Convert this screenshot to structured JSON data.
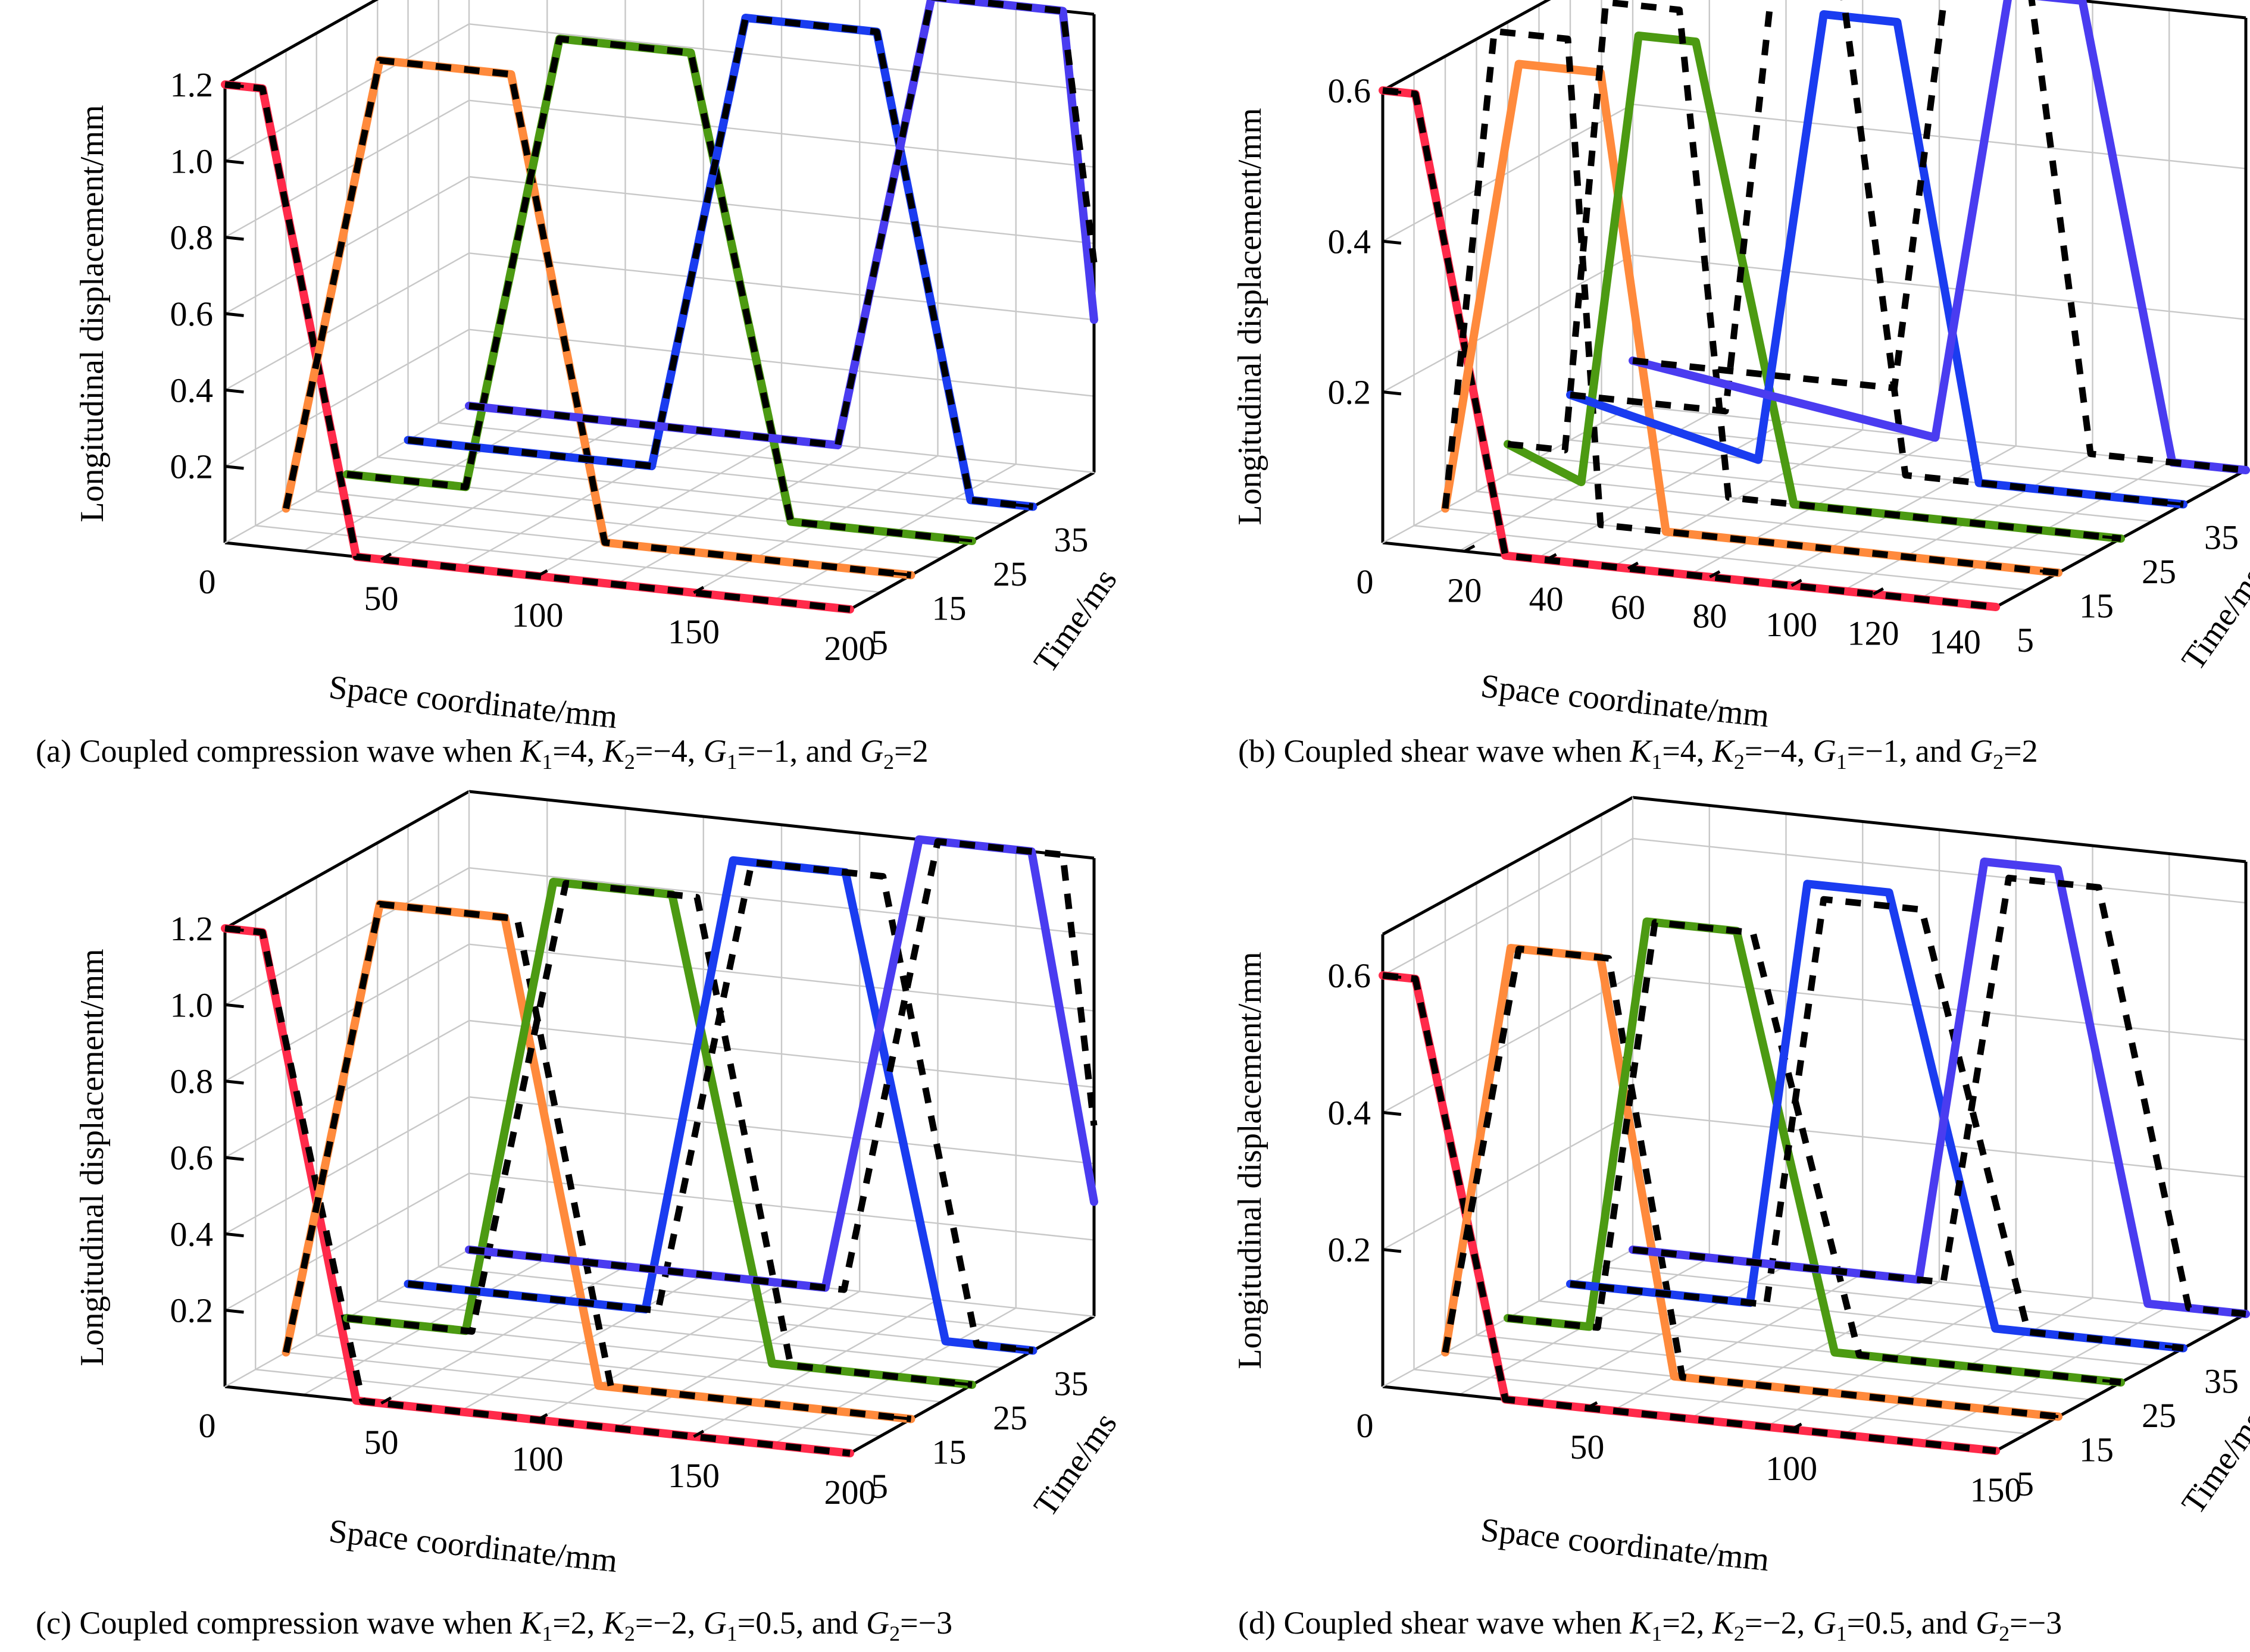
{
  "figure": {
    "panels": [
      {
        "id": "a",
        "caption": {
          "prefix": "(a) Coupled compression wave when ",
          "terms": [
            {
              "sym": "K",
              "sub": "1",
              "val": "=4, "
            },
            {
              "sym": "K",
              "sub": "2",
              "val": "=−4, "
            },
            {
              "sym": "G",
              "sub": "1",
              "val": "=−1, and "
            },
            {
              "sym": "G",
              "sub": "2",
              "val": "=2"
            }
          ]
        }
      },
      {
        "id": "b",
        "caption": {
          "prefix": "(b) Coupled shear wave when ",
          "terms": [
            {
              "sym": "K",
              "sub": "1",
              "val": "=4, "
            },
            {
              "sym": "K",
              "sub": "2",
              "val": "=−4, "
            },
            {
              "sym": "G",
              "sub": "1",
              "val": "=−1, and "
            },
            {
              "sym": "G",
              "sub": "2",
              "val": "=2"
            }
          ]
        }
      },
      {
        "id": "c",
        "caption": {
          "prefix": "(c) Coupled compression wave when ",
          "terms": [
            {
              "sym": "K",
              "sub": "1",
              "val": "=2, "
            },
            {
              "sym": "K",
              "sub": "2",
              "val": "=−2, "
            },
            {
              "sym": "G",
              "sub": "1",
              "val": "=0.5, and "
            },
            {
              "sym": "G",
              "sub": "2",
              "val": "=−3"
            }
          ]
        }
      },
      {
        "id": "d",
        "caption": {
          "prefix": "(d) Coupled shear wave when ",
          "terms": [
            {
              "sym": "K",
              "sub": "1",
              "val": "=2, "
            },
            {
              "sym": "K",
              "sub": "2",
              "val": "=−2, "
            },
            {
              "sym": "G",
              "sub": "1",
              "val": "=0.5, and "
            },
            {
              "sym": "G",
              "sub": "2",
              "val": "=−3"
            }
          ]
        }
      }
    ]
  },
  "colors": {
    "t5": "#ff2a4a",
    "t15": "#ff8a3c",
    "t25": "#4c9a12",
    "t35": "#1a3cf0",
    "t45": "#4a3cf0",
    "analytical": "#000000",
    "grid": "#c8c8c8"
  },
  "chart_data": [
    {
      "type": "line",
      "title": "(a) Coupled compression wave when K1=4, K2=-4, G1=-1, and G2=2",
      "xlabel": "Space coordinate/mm",
      "ylabel": "Time/ms",
      "zlabel": "Longitudinal displacement/mm",
      "xlim": [
        0,
        200
      ],
      "ylim": [
        5,
        45
      ],
      "zlim": [
        0,
        1.2
      ],
      "xticks": [
        "0",
        "50",
        "100",
        "150",
        "200"
      ],
      "yticks": [
        "5",
        "15",
        "25",
        "35"
      ],
      "zticks": [
        "0.2",
        "0.4",
        "0.6",
        "0.8",
        "1.0",
        "1.2"
      ],
      "grid": true,
      "series": [
        {
          "name": "t=5 ms numerical",
          "time": 5,
          "style": "solid",
          "color_key": "t5",
          "x": [
            0,
            12,
            42,
            200
          ],
          "z": [
            1.2,
            1.2,
            0.0,
            0.0
          ]
        },
        {
          "name": "t=5 ms analytical",
          "time": 5,
          "style": "dashed",
          "x": [
            0,
            12,
            42,
            200
          ],
          "z": [
            1.2,
            1.2,
            0.0,
            0.0
          ]
        },
        {
          "name": "t=15 ms numerical",
          "time": 15,
          "style": "solid",
          "color_key": "t15",
          "x": [
            0,
            30,
            72,
            102,
            200
          ],
          "z": [
            0.0,
            1.2,
            1.2,
            0.0,
            0.0
          ]
        },
        {
          "name": "t=15 ms analytical",
          "time": 15,
          "style": "dashed",
          "x": [
            0,
            30,
            72,
            102,
            200
          ],
          "z": [
            0.0,
            1.2,
            1.2,
            0.0,
            0.0
          ]
        },
        {
          "name": "t=25 ms numerical",
          "time": 25,
          "style": "solid",
          "color_key": "t25",
          "x": [
            0,
            38,
            68,
            110,
            142,
            200
          ],
          "z": [
            0.0,
            0.0,
            1.2,
            1.2,
            0.0,
            0.0
          ]
        },
        {
          "name": "t=25 ms analytical",
          "time": 25,
          "style": "dashed",
          "x": [
            0,
            38,
            68,
            110,
            142,
            200
          ],
          "z": [
            0.0,
            0.0,
            1.2,
            1.2,
            0.0,
            0.0
          ]
        },
        {
          "name": "t=35 ms numerical",
          "time": 35,
          "style": "solid",
          "color_key": "t35",
          "x": [
            0,
            78,
            108,
            150,
            180,
            200
          ],
          "z": [
            0.0,
            0.0,
            1.2,
            1.2,
            0.0,
            0.0
          ]
        },
        {
          "name": "t=35 ms analytical",
          "time": 35,
          "style": "dashed",
          "x": [
            0,
            78,
            108,
            150,
            180,
            200
          ],
          "z": [
            0.0,
            0.0,
            1.2,
            1.2,
            0.0,
            0.0
          ]
        },
        {
          "name": "t=45 ms numerical",
          "time": 45,
          "style": "solid",
          "color_key": "t45",
          "x": [
            0,
            118,
            148,
            190,
            200
          ],
          "z": [
            0.0,
            0.0,
            1.2,
            1.2,
            0.4
          ]
        },
        {
          "name": "t=45 ms analytical",
          "time": 45,
          "style": "dashed",
          "x": [
            0,
            118,
            148,
            190,
            200
          ],
          "z": [
            0.0,
            0.0,
            1.2,
            1.2,
            0.55
          ]
        }
      ]
    },
    {
      "type": "line",
      "title": "(b) Coupled shear wave when K1=4, K2=-4, G1=-1, and G2=2",
      "xlabel": "Space coordinate/mm",
      "ylabel": "Time/ms",
      "zlabel": "Longitudinal displacement/mm",
      "xlim": [
        0,
        150
      ],
      "ylim": [
        5,
        45
      ],
      "zlim": [
        0,
        0.6
      ],
      "xticks": [
        "0",
        "20",
        "40",
        "60",
        "80",
        "100",
        "120",
        "140"
      ],
      "yticks": [
        "5",
        "15",
        "25",
        "35"
      ],
      "zticks": [
        "0.2",
        "0.4",
        "0.6"
      ],
      "grid": true,
      "series": [
        {
          "name": "t=5 ms numerical",
          "time": 5,
          "style": "solid",
          "color_key": "t5",
          "x": [
            0,
            8,
            30,
            150
          ],
          "z": [
            0.6,
            0.6,
            0.0,
            0.0
          ]
        },
        {
          "name": "t=5 ms analytical",
          "time": 5,
          "style": "dashed",
          "x": [
            0,
            8,
            30,
            150
          ],
          "z": [
            0.6,
            0.6,
            0.0,
            0.0
          ]
        },
        {
          "name": "t=15 ms numerical",
          "time": 15,
          "style": "solid",
          "color_key": "t15",
          "x": [
            0,
            18,
            38,
            54,
            150
          ],
          "z": [
            0.0,
            0.6,
            0.6,
            0.0,
            0.0
          ]
        },
        {
          "name": "t=15 ms analytical",
          "time": 15,
          "style": "dashed",
          "x": [
            0,
            12,
            30,
            38,
            150
          ],
          "z": [
            0.0,
            0.64,
            0.64,
            0.0,
            0.0
          ]
        },
        {
          "name": "t=25 ms numerical",
          "time": 25,
          "style": "solid",
          "color_key": "t25",
          "x": [
            0,
            18,
            32,
            46,
            70,
            150
          ],
          "z": [
            0.04,
            0.0,
            0.6,
            0.6,
            0.0,
            0.0
          ]
        },
        {
          "name": "t=25 ms analytical",
          "time": 25,
          "style": "dashed",
          "x": [
            0,
            14,
            24,
            42,
            54,
            150
          ],
          "z": [
            0.04,
            0.04,
            0.64,
            0.64,
            0.0,
            0.0
          ]
        },
        {
          "name": "t=35 ms numerical",
          "time": 35,
          "style": "solid",
          "color_key": "t35",
          "x": [
            0,
            46,
            62,
            80,
            100,
            150
          ],
          "z": [
            0.06,
            0.0,
            0.6,
            0.6,
            0.0,
            0.0
          ]
        },
        {
          "name": "t=35 ms analytical",
          "time": 35,
          "style": "dashed",
          "x": [
            0,
            38,
            50,
            66,
            82,
            150
          ],
          "z": [
            0.06,
            0.06,
            0.66,
            0.66,
            0.0,
            0.0
          ]
        },
        {
          "name": "t=45 ms numerical",
          "time": 45,
          "style": "solid",
          "color_key": "t45",
          "x": [
            0,
            74,
            92,
            110,
            132,
            150
          ],
          "z": [
            0.06,
            0.0,
            0.6,
            0.6,
            0.0,
            0.0
          ]
        },
        {
          "name": "t=45 ms analytical",
          "time": 45,
          "style": "dashed",
          "x": [
            0,
            64,
            78,
            96,
            112,
            150
          ],
          "z": [
            0.06,
            0.06,
            0.66,
            0.66,
            0.0,
            0.0
          ]
        }
      ]
    },
    {
      "type": "line",
      "title": "(c) Coupled compression wave when K1=2, K2=-2, G1=0.5, and G2=-3",
      "xlabel": "Space coordinate/mm",
      "ylabel": "Time/ms",
      "zlabel": "Longitudinal displacement/mm",
      "xlim": [
        0,
        200
      ],
      "ylim": [
        5,
        45
      ],
      "zlim": [
        0,
        1.2
      ],
      "xticks": [
        "0",
        "50",
        "100",
        "150",
        "200"
      ],
      "yticks": [
        "5",
        "15",
        "25",
        "35"
      ],
      "zticks": [
        "0.2",
        "0.4",
        "0.6",
        "0.8",
        "1.0",
        "1.2"
      ],
      "grid": true,
      "series": [
        {
          "name": "t=5 ms numerical",
          "time": 5,
          "style": "solid",
          "color_key": "t5",
          "x": [
            0,
            12,
            42,
            200
          ],
          "z": [
            1.2,
            1.2,
            0.0,
            0.0
          ]
        },
        {
          "name": "t=5 ms analytical",
          "time": 5,
          "style": "dashed",
          "x": [
            0,
            12,
            44,
            200
          ],
          "z": [
            1.2,
            1.2,
            0.0,
            0.0
          ]
        },
        {
          "name": "t=15 ms numerical",
          "time": 15,
          "style": "solid",
          "color_key": "t15",
          "x": [
            0,
            30,
            70,
            100,
            200
          ],
          "z": [
            0.0,
            1.2,
            1.2,
            0.0,
            0.0
          ]
        },
        {
          "name": "t=15 ms analytical",
          "time": 15,
          "style": "dashed",
          "x": [
            0,
            30,
            74,
            104,
            200
          ],
          "z": [
            0.0,
            1.2,
            1.2,
            0.0,
            0.0
          ]
        },
        {
          "name": "t=25 ms numerical",
          "time": 25,
          "style": "solid",
          "color_key": "t25",
          "x": [
            0,
            38,
            66,
            104,
            136,
            200
          ],
          "z": [
            0.0,
            0.0,
            1.2,
            1.2,
            0.0,
            0.0
          ]
        },
        {
          "name": "t=25 ms analytical",
          "time": 25,
          "style": "dashed",
          "x": [
            0,
            40,
            70,
            112,
            142,
            200
          ],
          "z": [
            0.0,
            0.0,
            1.2,
            1.2,
            0.0,
            0.0
          ]
        },
        {
          "name": "t=35 ms numerical",
          "time": 35,
          "style": "solid",
          "color_key": "t35",
          "x": [
            0,
            76,
            104,
            140,
            172,
            200
          ],
          "z": [
            0.0,
            0.0,
            1.2,
            1.2,
            0.0,
            0.0
          ]
        },
        {
          "name": "t=35 ms analytical",
          "time": 35,
          "style": "dashed",
          "x": [
            0,
            80,
            110,
            152,
            182,
            200
          ],
          "z": [
            0.0,
            0.0,
            1.2,
            1.2,
            0.0,
            0.0
          ]
        },
        {
          "name": "t=45 ms numerical",
          "time": 45,
          "style": "solid",
          "color_key": "t45",
          "x": [
            0,
            114,
            144,
            180,
            200
          ],
          "z": [
            0.0,
            0.0,
            1.2,
            1.2,
            0.3
          ]
        },
        {
          "name": "t=45 ms analytical",
          "time": 45,
          "style": "dashed",
          "x": [
            0,
            120,
            150,
            190,
            200
          ],
          "z": [
            0.0,
            0.0,
            1.2,
            1.2,
            0.5
          ]
        }
      ]
    },
    {
      "type": "line",
      "title": "(d) Coupled shear wave when K1=2, K2=-2, G1=0.5, and G2=-3",
      "xlabel": "Space coordinate/mm",
      "ylabel": "Time/ms",
      "zlabel": "Longitudinal displacement/mm",
      "xlim": [
        0,
        150
      ],
      "ylim": [
        5,
        45
      ],
      "zlim": [
        0,
        0.66
      ],
      "xticks": [
        "0",
        "50",
        "100",
        "150"
      ],
      "yticks": [
        "5",
        "15",
        "25",
        "35"
      ],
      "zticks": [
        "0.2",
        "0.4",
        "0.6"
      ],
      "grid": true,
      "series": [
        {
          "name": "t=5 ms numerical",
          "time": 5,
          "style": "solid",
          "color_key": "t5",
          "x": [
            0,
            8,
            30,
            150
          ],
          "z": [
            0.6,
            0.6,
            0.0,
            0.0
          ]
        },
        {
          "name": "t=5 ms analytical",
          "time": 5,
          "style": "dashed",
          "x": [
            0,
            8,
            30,
            150
          ],
          "z": [
            0.6,
            0.6,
            0.0,
            0.0
          ]
        },
        {
          "name": "t=15 ms numerical",
          "time": 15,
          "style": "solid",
          "color_key": "t15",
          "x": [
            0,
            16,
            38,
            56,
            150
          ],
          "z": [
            0.0,
            0.6,
            0.6,
            0.0,
            0.0
          ]
        },
        {
          "name": "t=15 ms analytical",
          "time": 15,
          "style": "dashed",
          "x": [
            0,
            18,
            40,
            58,
            150
          ],
          "z": [
            0.0,
            0.6,
            0.6,
            0.0,
            0.0
          ]
        },
        {
          "name": "t=25 ms numerical",
          "time": 25,
          "style": "solid",
          "color_key": "t25",
          "x": [
            0,
            20,
            34,
            56,
            80,
            150
          ],
          "z": [
            0.0,
            0.0,
            0.6,
            0.6,
            0.0,
            0.0
          ]
        },
        {
          "name": "t=25 ms analytical",
          "time": 25,
          "style": "dashed",
          "x": [
            0,
            22,
            36,
            60,
            86,
            150
          ],
          "z": [
            0.0,
            0.0,
            0.6,
            0.6,
            0.0,
            0.0
          ]
        },
        {
          "name": "t=35 ms numerical",
          "time": 35,
          "style": "solid",
          "color_key": "t35",
          "x": [
            0,
            44,
            58,
            78,
            104,
            150
          ],
          "z": [
            0.0,
            0.0,
            0.62,
            0.62,
            0.0,
            0.0
          ]
        },
        {
          "name": "t=35 ms analytical",
          "time": 35,
          "style": "dashed",
          "x": [
            0,
            48,
            62,
            86,
            112,
            150
          ],
          "z": [
            0.0,
            0.0,
            0.6,
            0.6,
            0.0,
            0.0
          ]
        },
        {
          "name": "t=45 ms numerical",
          "time": 45,
          "style": "solid",
          "color_key": "t45",
          "x": [
            0,
            70,
            86,
            104,
            126,
            150
          ],
          "z": [
            0.0,
            0.0,
            0.62,
            0.62,
            0.0,
            0.0
          ]
        },
        {
          "name": "t=45 ms analytical",
          "time": 45,
          "style": "dashed",
          "x": [
            0,
            76,
            92,
            114,
            136,
            150
          ],
          "z": [
            0.0,
            0.0,
            0.6,
            0.6,
            0.0,
            0.0
          ]
        }
      ]
    }
  ]
}
